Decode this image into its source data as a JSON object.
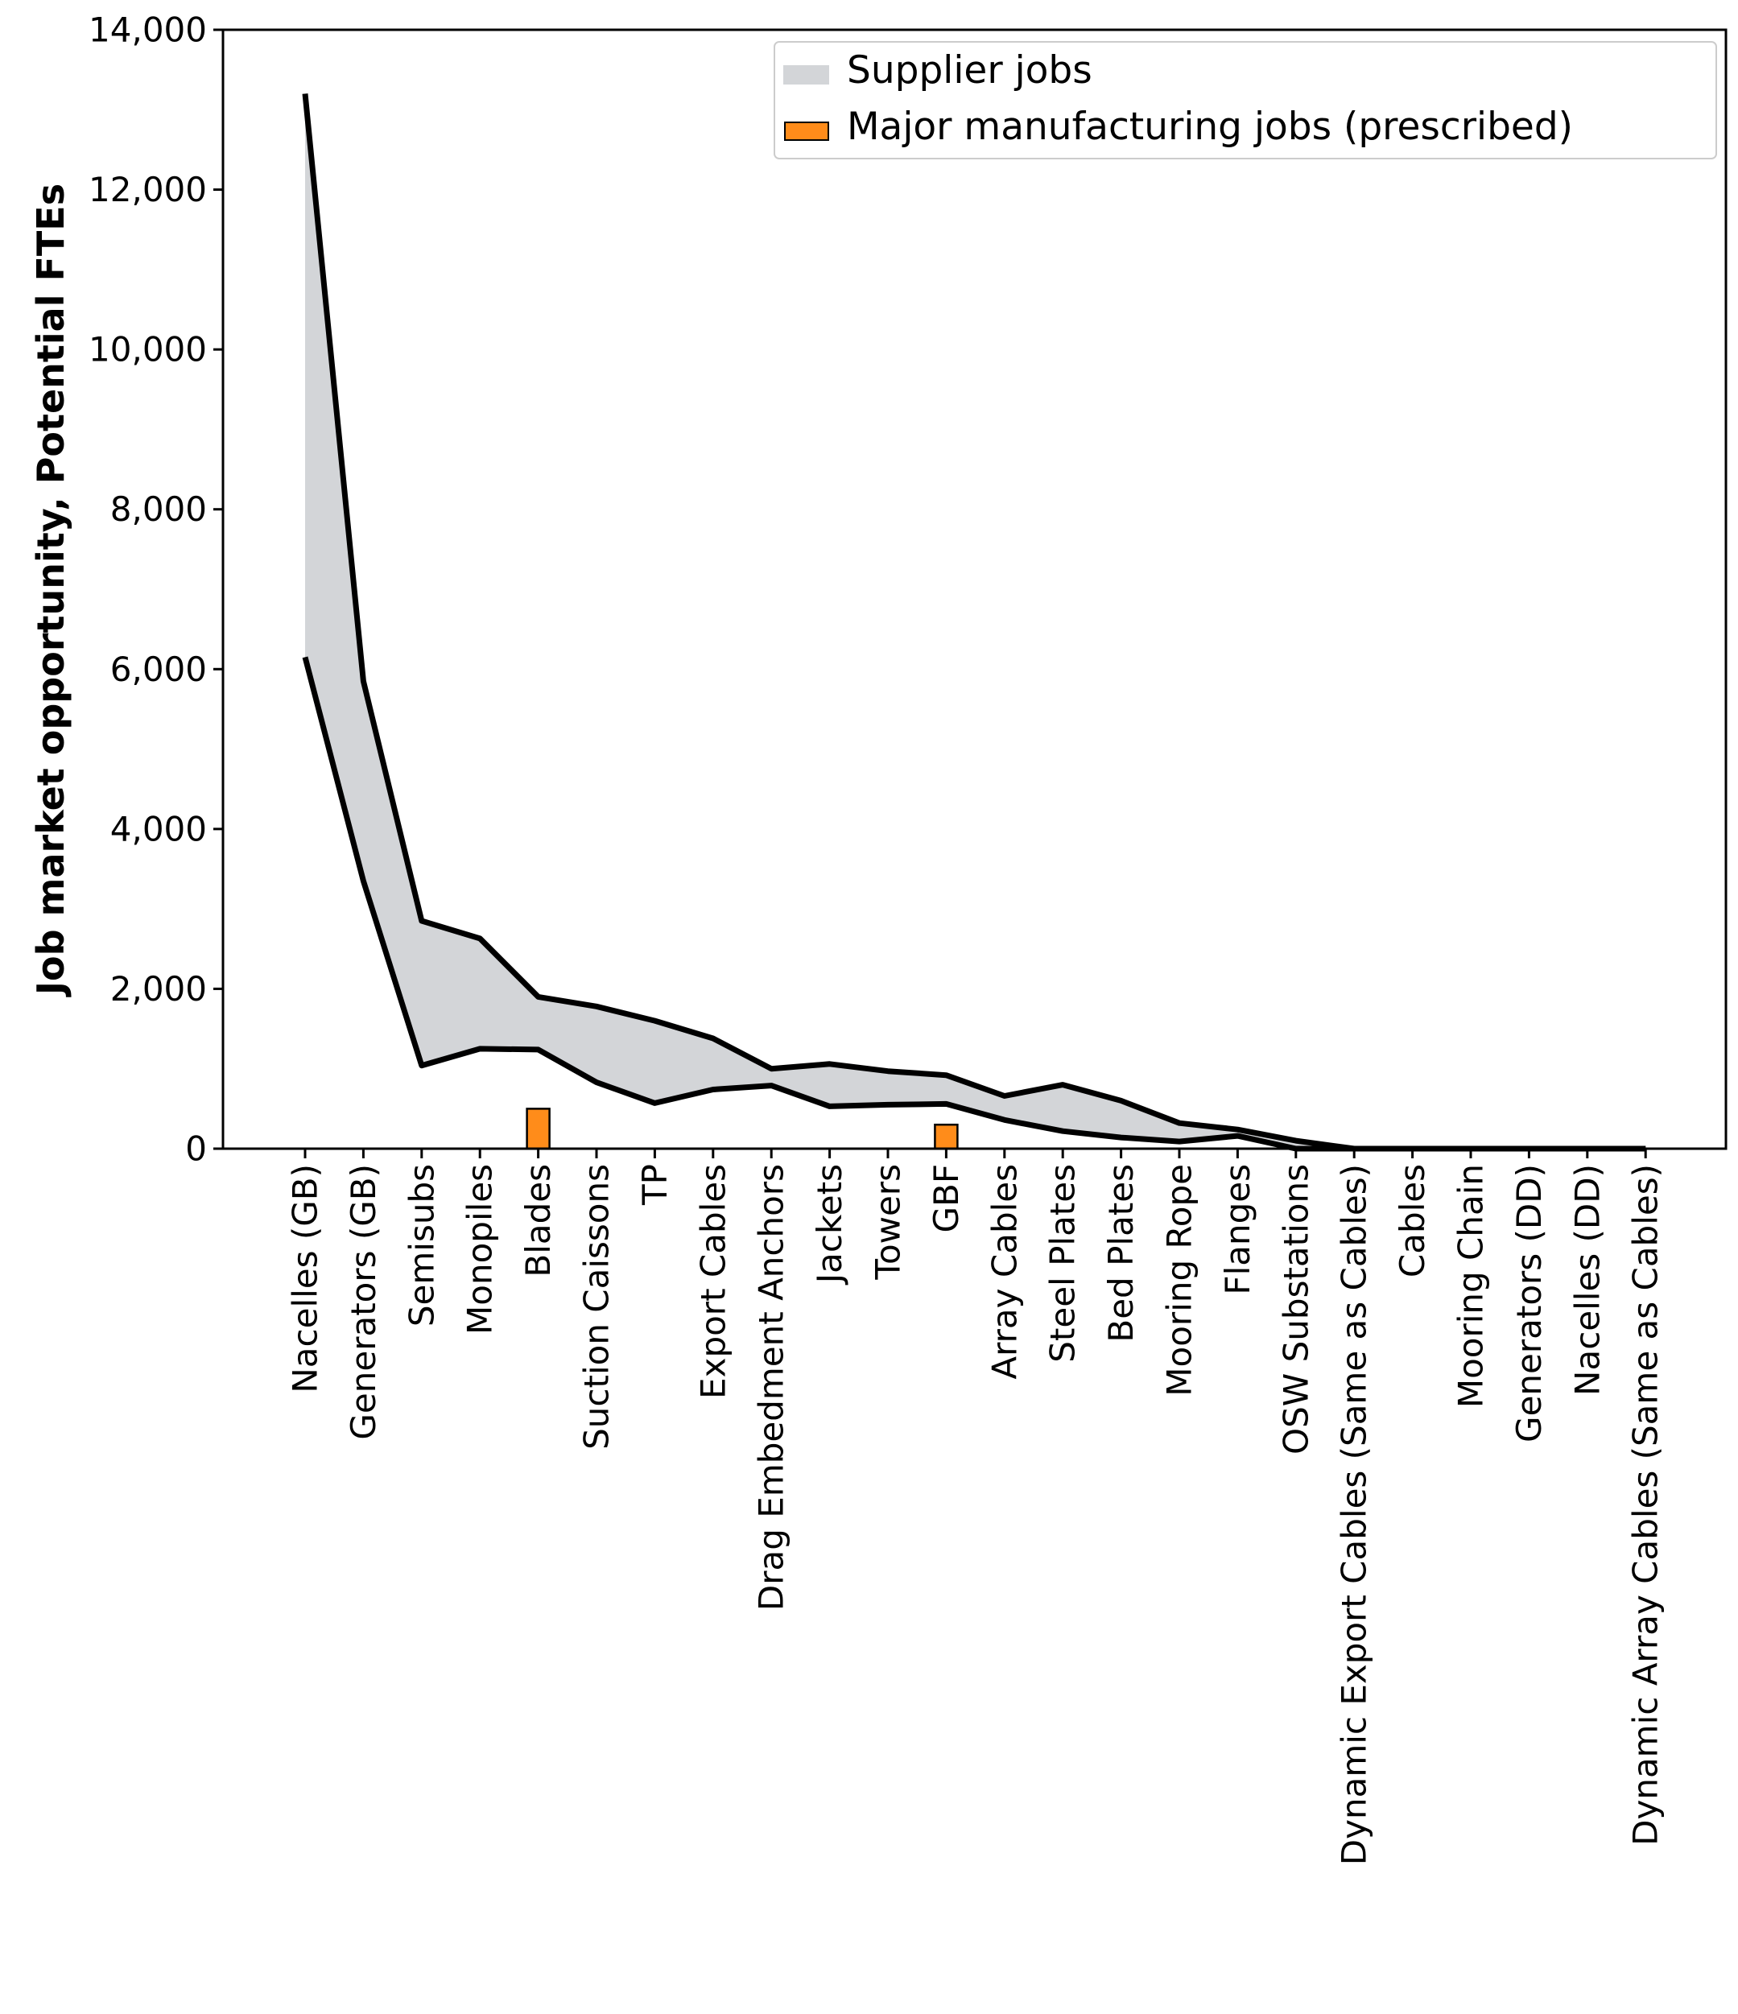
{
  "chart_data": {
    "type": "area",
    "title": "",
    "xlabel": "",
    "ylabel": "Job market opportunity, Potential FTEs",
    "ylim": [
      0,
      14000
    ],
    "yticks": [
      0,
      2000,
      4000,
      6000,
      8000,
      10000,
      12000,
      14000
    ],
    "ytick_labels": [
      "0",
      "2,000",
      "4,000",
      "6,000",
      "8,000",
      "10,000",
      "12,000",
      "14,000"
    ],
    "grid": false,
    "legend_position": "top-right",
    "categories": [
      "Nacelles (GB)",
      "Generators (GB)",
      "Semisubs",
      "Monopiles",
      "Blades",
      "Suction Caissons",
      "TP",
      "Export Cables",
      "Drag Embedment Anchors",
      "Jackets",
      "Towers",
      "GBF",
      "Array Cables",
      "Steel Plates",
      "Bed Plates",
      "Mooring Rope",
      "Flanges",
      "OSW Substations",
      "Dynamic Export Cables (Same as Cables)",
      "Cables",
      "Mooring Chain",
      "Generators (DD)",
      "Nacelles (DD)",
      "Dynamic Array Cables (Same as Cables)"
    ],
    "series": [
      {
        "name": "Supplier jobs",
        "kind": "band",
        "color": "#d3d5d8",
        "line_color": "#000000",
        "upper": [
          13200,
          5850,
          2850,
          2630,
          1900,
          1780,
          1600,
          1380,
          1000,
          1060,
          970,
          920,
          660,
          800,
          600,
          320,
          240,
          100,
          0,
          0,
          0,
          0,
          0,
          0
        ],
        "lower": [
          6150,
          3350,
          1040,
          1250,
          1240,
          830,
          570,
          740,
          790,
          530,
          550,
          560,
          360,
          220,
          140,
          90,
          160,
          0,
          0,
          0,
          0,
          0,
          0,
          0
        ]
      },
      {
        "name": "Major manufacturing jobs (prescribed)",
        "kind": "bar",
        "color": "#ff8c1a",
        "values": [
          0,
          0,
          0,
          0,
          500,
          0,
          0,
          0,
          0,
          0,
          0,
          300,
          0,
          0,
          0,
          0,
          0,
          0,
          0,
          0,
          0,
          0,
          0,
          0
        ]
      }
    ]
  }
}
